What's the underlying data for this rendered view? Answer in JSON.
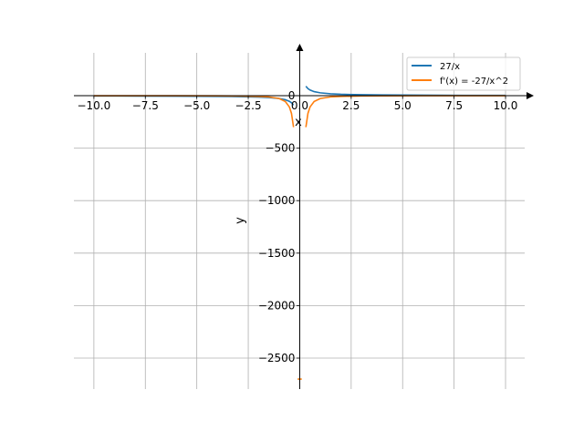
{
  "chart_data": {
    "type": "line",
    "title": "",
    "xlabel": "x",
    "ylabel": "y",
    "xlim": [
      -10.97,
      10.93
    ],
    "ylim": [
      -2795,
      408
    ],
    "grid": true,
    "legend_placement": "top-right",
    "x_ticks": [
      -10.0,
      -7.5,
      -5.0,
      -2.5,
      0.0,
      2.5,
      5.0,
      7.5,
      10.0
    ],
    "x_tick_labels": [
      "−10.0",
      "−7.5",
      "−5.0",
      "−2.5",
      "0.0",
      "2.5",
      "5.0",
      "7.5",
      "10.0"
    ],
    "y_ticks": [
      0,
      -500,
      -1000,
      -1500,
      -2000,
      -2500
    ],
    "y_tick_labels": [
      "0",
      "−500",
      "−1000",
      "−1500",
      "−2000",
      "−2500"
    ],
    "series": [
      {
        "name": "27/x",
        "color": "#1f77b4",
        "segments": [
          {
            "x": [
              -10,
              -8,
              -6,
              -4,
              -3,
              -2,
              -1.5,
              -1,
              -0.7,
              -0.5,
              -0.4,
              -0.3
            ],
            "y": [
              -2.7,
              -3.375,
              -4.5,
              -6.75,
              -9,
              -13.5,
              -18,
              -27,
              -38.57,
              -54,
              -67.5,
              -90
            ]
          },
          {
            "x": [
              0.3,
              0.4,
              0.5,
              0.7,
              1,
              1.5,
              2,
              3,
              4,
              6,
              8,
              10
            ],
            "y": [
              90,
              67.5,
              54,
              38.57,
              27,
              18,
              13.5,
              9,
              6.75,
              4.5,
              3.375,
              2.7
            ]
          }
        ]
      },
      {
        "name": "f'(x) = -27/x^2",
        "color": "#ff7f0e",
        "segments": [
          {
            "x": [
              -10,
              -8,
              -6,
              -4,
              -3,
              -2,
              -1.5,
              -1,
              -0.7,
              -0.5,
              -0.4,
              -0.3
            ],
            "y": [
              -0.27,
              -0.42,
              -0.75,
              -1.69,
              -3,
              -6.75,
              -12,
              -27,
              -55.1,
              -108,
              -168.75,
              -300
            ]
          },
          {
            "x": [
              0.3,
              0.4,
              0.5,
              0.7,
              1,
              1.5,
              2,
              3,
              4,
              6,
              8,
              10
            ],
            "y": [
              -300,
              -168.75,
              -108,
              -55.1,
              -27,
              -12,
              -6.75,
              -3,
              -1.69,
              -0.75,
              -0.42,
              -0.27
            ]
          },
          {
            "x": [
              -0.1,
              0.1
            ],
            "y": [
              -2700,
              -2700
            ]
          }
        ]
      }
    ]
  }
}
